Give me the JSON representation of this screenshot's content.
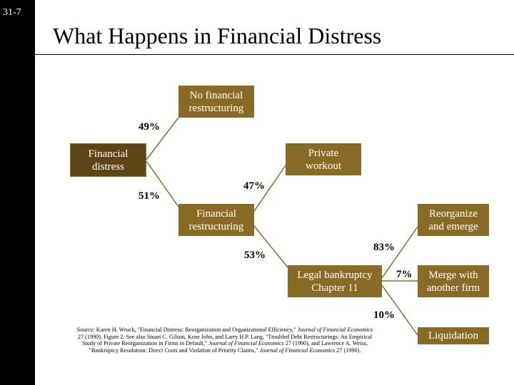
{
  "slide_number": "31-7",
  "title": "What Happens in Financial Distress",
  "colors": {
    "box_dark": "#5e4516",
    "box_gold": "#8a6b25",
    "line": "#8a6b25"
  },
  "nodes": {
    "financial_distress": "Financial\ndistress",
    "no_restructuring": "No financial\nrestructuring",
    "financial_restructuring": "Financial\nrestructuring",
    "private_workout": "Private\nworkout",
    "legal_bankruptcy": "Legal bankruptcy\nChapter 11",
    "reorganize": "Reorganize\nand emerge",
    "merge": "Merge with\nanother firm",
    "liquidation": "Liquidation"
  },
  "percentages": {
    "no_restructuring": "49%",
    "restructuring": "51%",
    "private_workout": "47%",
    "legal_bankruptcy": "53%",
    "reorganize": "83%",
    "merge": "7%",
    "liquidation": "10%"
  },
  "source": {
    "line1_a": "Source: Karen H. Wruck, \"Financial Distress: Reorganization and Organizational Efficiency,\" ",
    "line1_journal": "Journal of Financial Economics",
    "line2_a": "27 (1990), Figure 2. See also Stuart C. Gilson, Kose John, and Larry H.P. Lang, \"Troubled Debt Restructurings: An Empirical",
    "line3_a": "Study of Private Reorganization in Firms in Default,\" ",
    "line3_journal": "Journal of Financial Economics",
    "line3_b": " 27 (1990), and Lawrence A. Weiss,",
    "line4_a": "\"Bankruptcy Resolution: Direct Costs and Violation of Priority Claims,\" ",
    "line4_journal": "Journal of Financial Economics",
    "line4_b": " 27 (1990)."
  }
}
